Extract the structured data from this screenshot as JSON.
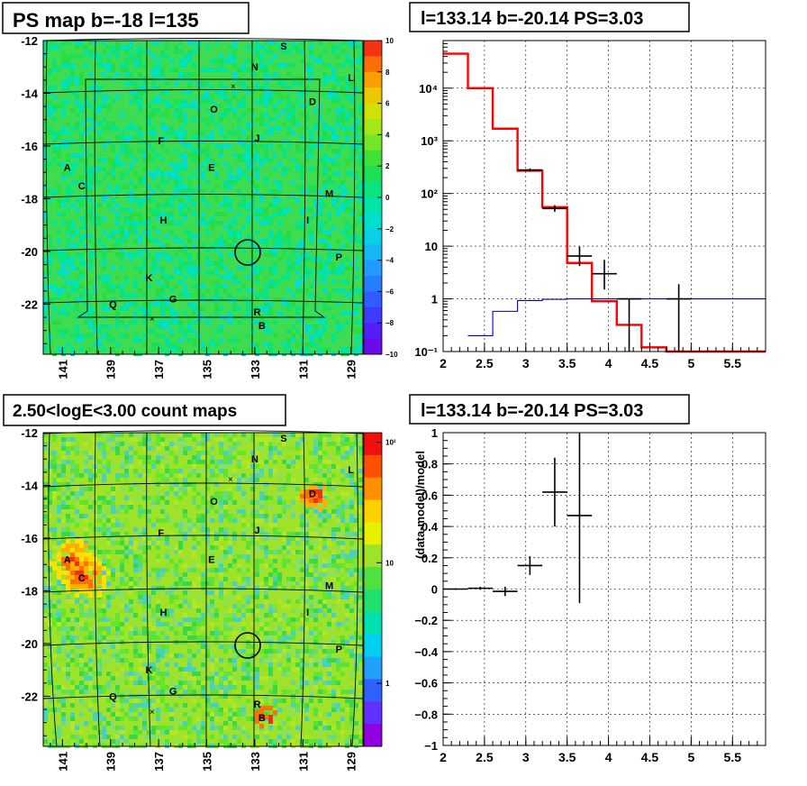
{
  "panels": {
    "ps_map": {
      "title": "PS map b=-18 l=135",
      "colorbar_ticks": [
        "10",
        "8",
        "6",
        "4",
        "2",
        "0",
        "−2",
        "−4",
        "−6",
        "−8",
        "−10"
      ]
    },
    "count_map": {
      "title": "2.50<logE<3.00 count maps",
      "colorbar_ticks": [
        "10²",
        "10",
        "1"
      ]
    },
    "spectrum": {
      "title": "l=133.14 b=-20.14 PS=3.03"
    },
    "residual": {
      "title": "l=133.14 b=-20.14 PS=3.03",
      "ylabel": "(data-model)/model"
    }
  },
  "map_axes": {
    "y_ticks": [
      "-12",
      "-14",
      "-16",
      "-18",
      "-20",
      "-22"
    ],
    "x_ticks": [
      "141",
      "139",
      "137",
      "135",
      "133",
      "131",
      "129"
    ]
  },
  "sources": [
    "A",
    "B",
    "C",
    "D",
    "E",
    "F",
    "G",
    "H",
    "I",
    "J",
    "K",
    "L",
    "M",
    "N",
    "O",
    "P",
    "Q",
    "R",
    "S"
  ],
  "colors": {
    "ps_green": "#3edc50",
    "data": "#000000",
    "model": "#ff0000",
    "source": "#0000cc"
  },
  "chart_data": [
    {
      "type": "heatmap",
      "name": "ps_map",
      "title": "PS map b=-18 l=135",
      "xlim": [
        141.8,
        128.5
      ],
      "ylim": [
        -23.9,
        -12
      ],
      "zlim": [
        -10,
        10
      ],
      "x_ticks": [
        141,
        139,
        137,
        135,
        133,
        131,
        129
      ],
      "y_ticks": [
        -12,
        -14,
        -16,
        -18,
        -20,
        -22
      ],
      "sources": [
        {
          "label": "A",
          "l": 140.8,
          "b": -16.8
        },
        {
          "label": "B",
          "l": 132.7,
          "b": -22.8
        },
        {
          "label": "C",
          "l": 140.2,
          "b": -17.5
        },
        {
          "label": "D",
          "l": 130.6,
          "b": -14.3
        },
        {
          "label": "E",
          "l": 134.8,
          "b": -16.8
        },
        {
          "label": "F",
          "l": 136.9,
          "b": -15.8
        },
        {
          "label": "G",
          "l": 136.4,
          "b": -21.8
        },
        {
          "label": "H",
          "l": 136.8,
          "b": -18.8
        },
        {
          "label": "I",
          "l": 130.8,
          "b": -18.8
        },
        {
          "label": "J",
          "l": 132.9,
          "b": -15.7
        },
        {
          "label": "K",
          "l": 137.4,
          "b": -21.0
        },
        {
          "label": "L",
          "l": 129.0,
          "b": -13.4
        },
        {
          "label": "M",
          "l": 129.9,
          "b": -17.8
        },
        {
          "label": "N",
          "l": 133.0,
          "b": -13.0
        },
        {
          "label": "O",
          "l": 134.7,
          "b": -14.6
        },
        {
          "label": "P",
          "l": 129.5,
          "b": -20.2
        },
        {
          "label": "Q",
          "l": 138.9,
          "b": -22.0
        },
        {
          "label": "R",
          "l": 132.9,
          "b": -22.3
        },
        {
          "label": "S",
          "l": 131.8,
          "b": -12.2
        }
      ],
      "candidate": {
        "l": 133.14,
        "b": -20.14
      }
    },
    {
      "type": "heatmap",
      "name": "count_map",
      "title": "2.50<logE<3.00 count maps",
      "xlim": [
        141.8,
        128.5
      ],
      "ylim": [
        -23.9,
        -12
      ],
      "zscale": "log",
      "zlim": [
        0.3,
        120
      ],
      "hotspots": [
        {
          "label": "A",
          "l": 140.5,
          "b": -16.9,
          "peak": 100
        },
        {
          "label": "C",
          "l": 140.1,
          "b": -17.4,
          "peak": 60
        },
        {
          "label": "D",
          "l": 130.6,
          "b": -14.3,
          "peak": 40
        },
        {
          "label": "B",
          "l": 132.6,
          "b": -22.7,
          "peak": 8
        }
      ],
      "candidate": {
        "l": 133.14,
        "b": -20.14
      }
    },
    {
      "type": "line",
      "name": "spectrum",
      "title": "l=133.14 b=-20.14 PS=3.03",
      "yscale": "log",
      "xlim": [
        2,
        5.9
      ],
      "ylim": [
        0.1,
        80000
      ],
      "x_ticks": [
        2,
        2.5,
        3,
        3.5,
        4,
        4.5,
        5,
        5.5
      ],
      "y_ticks": [
        "10⁻¹",
        "1",
        "10",
        "10²",
        "10³",
        "10⁴"
      ],
      "series": [
        {
          "style": "step",
          "color": "#ff0000",
          "bin_edges": [
            2.0,
            2.3,
            2.6,
            2.9,
            3.2,
            3.5,
            3.8,
            4.1,
            4.4,
            4.7,
            5.0,
            5.9
          ],
          "values": [
            45000,
            10000,
            1700,
            270,
            55,
            4.8,
            0.9,
            0.32,
            0.12,
            0.1,
            0.1
          ]
        },
        {
          "style": "step",
          "color": "#0000cc",
          "bin_edges": [
            2.3,
            2.6,
            2.9,
            3.2,
            3.5,
            3.8,
            4.1,
            4.4,
            4.7,
            5.0,
            5.9
          ],
          "values": [
            0.2,
            0.58,
            0.93,
            0.98,
            1.0,
            1.0,
            1.0,
            1.0,
            1.0,
            1.0
          ]
        },
        {
          "style": "errorbar",
          "color": "#000000",
          "points": [
            {
              "x": 3.05,
              "y": 280,
              "xerr": 0.15,
              "ylo": 260,
              "yhi": 300
            },
            {
              "x": 3.35,
              "y": 52,
              "xerr": 0.15,
              "ylo": 45,
              "yhi": 60
            },
            {
              "x": 3.65,
              "y": 6.5,
              "xerr": 0.15,
              "ylo": 4.2,
              "yhi": 9.8
            },
            {
              "x": 3.95,
              "y": 3.0,
              "xerr": 0.15,
              "ylo": 1.5,
              "yhi": 5.5
            },
            {
              "x": 4.25,
              "y": 1.0,
              "xerr": 0.15,
              "ylo": 0.1,
              "yhi": 1.0
            },
            {
              "x": 4.85,
              "y": 1.0,
              "xerr": 0.15,
              "ylo": 0.1,
              "yhi": 1.9
            }
          ]
        }
      ]
    },
    {
      "type": "scatter",
      "name": "residual",
      "title": "l=133.14 b=-20.14 PS=3.03",
      "ylabel": "(data-model)/model",
      "xlim": [
        2,
        5.9
      ],
      "ylim": [
        -1,
        1
      ],
      "x_ticks": [
        2,
        2.5,
        3,
        3.5,
        4,
        4.5,
        5,
        5.5
      ],
      "y_ticks": [
        -1,
        -0.8,
        -0.6,
        -0.4,
        -0.2,
        0,
        0.2,
        0.4,
        0.6,
        0.8,
        1
      ],
      "grid": true,
      "points": [
        {
          "x": 2.15,
          "y": 0.0,
          "xerr": 0.15,
          "yerr": 0.005
        },
        {
          "x": 2.45,
          "y": 0.005,
          "xerr": 0.15,
          "yerr": 0.01
        },
        {
          "x": 2.75,
          "y": -0.015,
          "xerr": 0.15,
          "yerr": 0.03
        },
        {
          "x": 3.05,
          "y": 0.15,
          "xerr": 0.15,
          "yerr": 0.06
        },
        {
          "x": 3.35,
          "y": 0.62,
          "xerr": 0.15,
          "yerr": 0.22
        },
        {
          "x": 3.65,
          "y": 0.47,
          "xerr": 0.15,
          "ylo": -0.09,
          "yhi": 1.0
        }
      ]
    }
  ]
}
